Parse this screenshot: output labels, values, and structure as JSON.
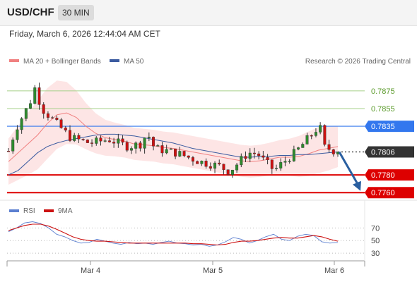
{
  "header": {
    "symbol": "USD/CHF",
    "timeframe": "30 MIN",
    "datetime": "Friday, March 6, 2026 12:44:04 AM CET"
  },
  "legend": {
    "ma20_label": "MA 20 + Bollinger Bands",
    "ma50_label": "MA 50",
    "credit": "Research © 2026 Trading Central",
    "rsi_label": "RSI",
    "ma9_label": "9MA"
  },
  "colors": {
    "candle_up": "#2e8b2e",
    "candle_down": "#cc1111",
    "ma20": "#f08080",
    "ma50": "#3b5ba0",
    "band_fill": "#fcdcdc",
    "resistance_line": "#a6d08a",
    "resistance_text": "#5a9a2a",
    "pivot": "#3377ee",
    "support": "#dd0000",
    "arrow": "#2a5fa0",
    "rsi": "#5b7fd0",
    "rsi_ma": "#cc1111"
  },
  "chart_data": [
    {
      "type": "candlestick",
      "title": "",
      "x_ticks": [
        "Mar 4",
        "Mar 5",
        "Mar 6"
      ],
      "ylim": [
        0.7753,
        0.7898
      ],
      "price_levels": [
        {
          "value": 0.7875,
          "label": "0.7875",
          "kind": "resistance"
        },
        {
          "value": 0.7855,
          "label": "0.7855",
          "kind": "resistance"
        },
        {
          "value": 0.7835,
          "label": "0.7835",
          "kind": "pivot"
        },
        {
          "value": 0.7806,
          "label": "0.7806",
          "kind": "last"
        },
        {
          "value": 0.778,
          "label": "0.7780",
          "kind": "support"
        },
        {
          "value": 0.776,
          "label": "0.7760",
          "kind": "support"
        }
      ],
      "forecast_arrow": {
        "from": 0.7806,
        "to": 0.7762
      },
      "series": [
        {
          "name": "MA 20 + Bollinger Bands",
          "ma": [
            0.7795,
            0.7805,
            0.7815,
            0.7825,
            0.7838,
            0.7848,
            0.785,
            0.7845,
            0.7835,
            0.7827,
            0.7822,
            0.782,
            0.7818,
            0.7815,
            0.7814,
            0.7813,
            0.7811,
            0.781,
            0.7808,
            0.7806,
            0.7804,
            0.7802,
            0.78,
            0.7798,
            0.7796,
            0.7795,
            0.7796,
            0.7798,
            0.78,
            0.78,
            0.7801,
            0.7804,
            0.7808,
            0.781,
            0.7812
          ]
        },
        {
          "name": "MA 50",
          "ma": [
            0.778,
            0.7785,
            0.7795,
            0.7805,
            0.7812,
            0.7816,
            0.7819,
            0.7821,
            0.7823,
            0.7825,
            0.7826,
            0.7826,
            0.7825,
            0.7824,
            0.7822,
            0.782,
            0.7818,
            0.7816,
            0.7813,
            0.781,
            0.7808,
            0.7806,
            0.7804,
            0.7802,
            0.78,
            0.78,
            0.7801,
            0.7801,
            0.7802,
            0.7802,
            0.7803,
            0.7803,
            0.7804,
            0.7805,
            0.7806
          ]
        }
      ]
    },
    {
      "type": "line",
      "title": "",
      "ylim": [
        20,
        85
      ],
      "y_ticks": [
        30,
        50,
        70
      ],
      "series": [
        {
          "name": "RSI",
          "values": [
            64,
            70,
            78,
            80,
            77,
            70,
            60,
            56,
            50,
            46,
            47,
            52,
            49,
            46,
            44,
            47,
            45,
            46,
            44,
            47,
            49,
            46,
            45,
            43,
            44,
            41,
            43,
            48,
            55,
            52,
            46,
            50,
            56,
            60,
            52,
            50,
            57,
            60,
            58,
            48,
            46,
            47
          ]
        },
        {
          "name": "9MA",
          "values": [
            66,
            70,
            74,
            76,
            76,
            73,
            68,
            62,
            56,
            52,
            50,
            49,
            49,
            48,
            47,
            46,
            46,
            46,
            46,
            46,
            46,
            46,
            46,
            45,
            45,
            44,
            43,
            44,
            47,
            49,
            49,
            50,
            52,
            54,
            55,
            54,
            54,
            56,
            58,
            56,
            52,
            49
          ]
        }
      ]
    }
  ]
}
